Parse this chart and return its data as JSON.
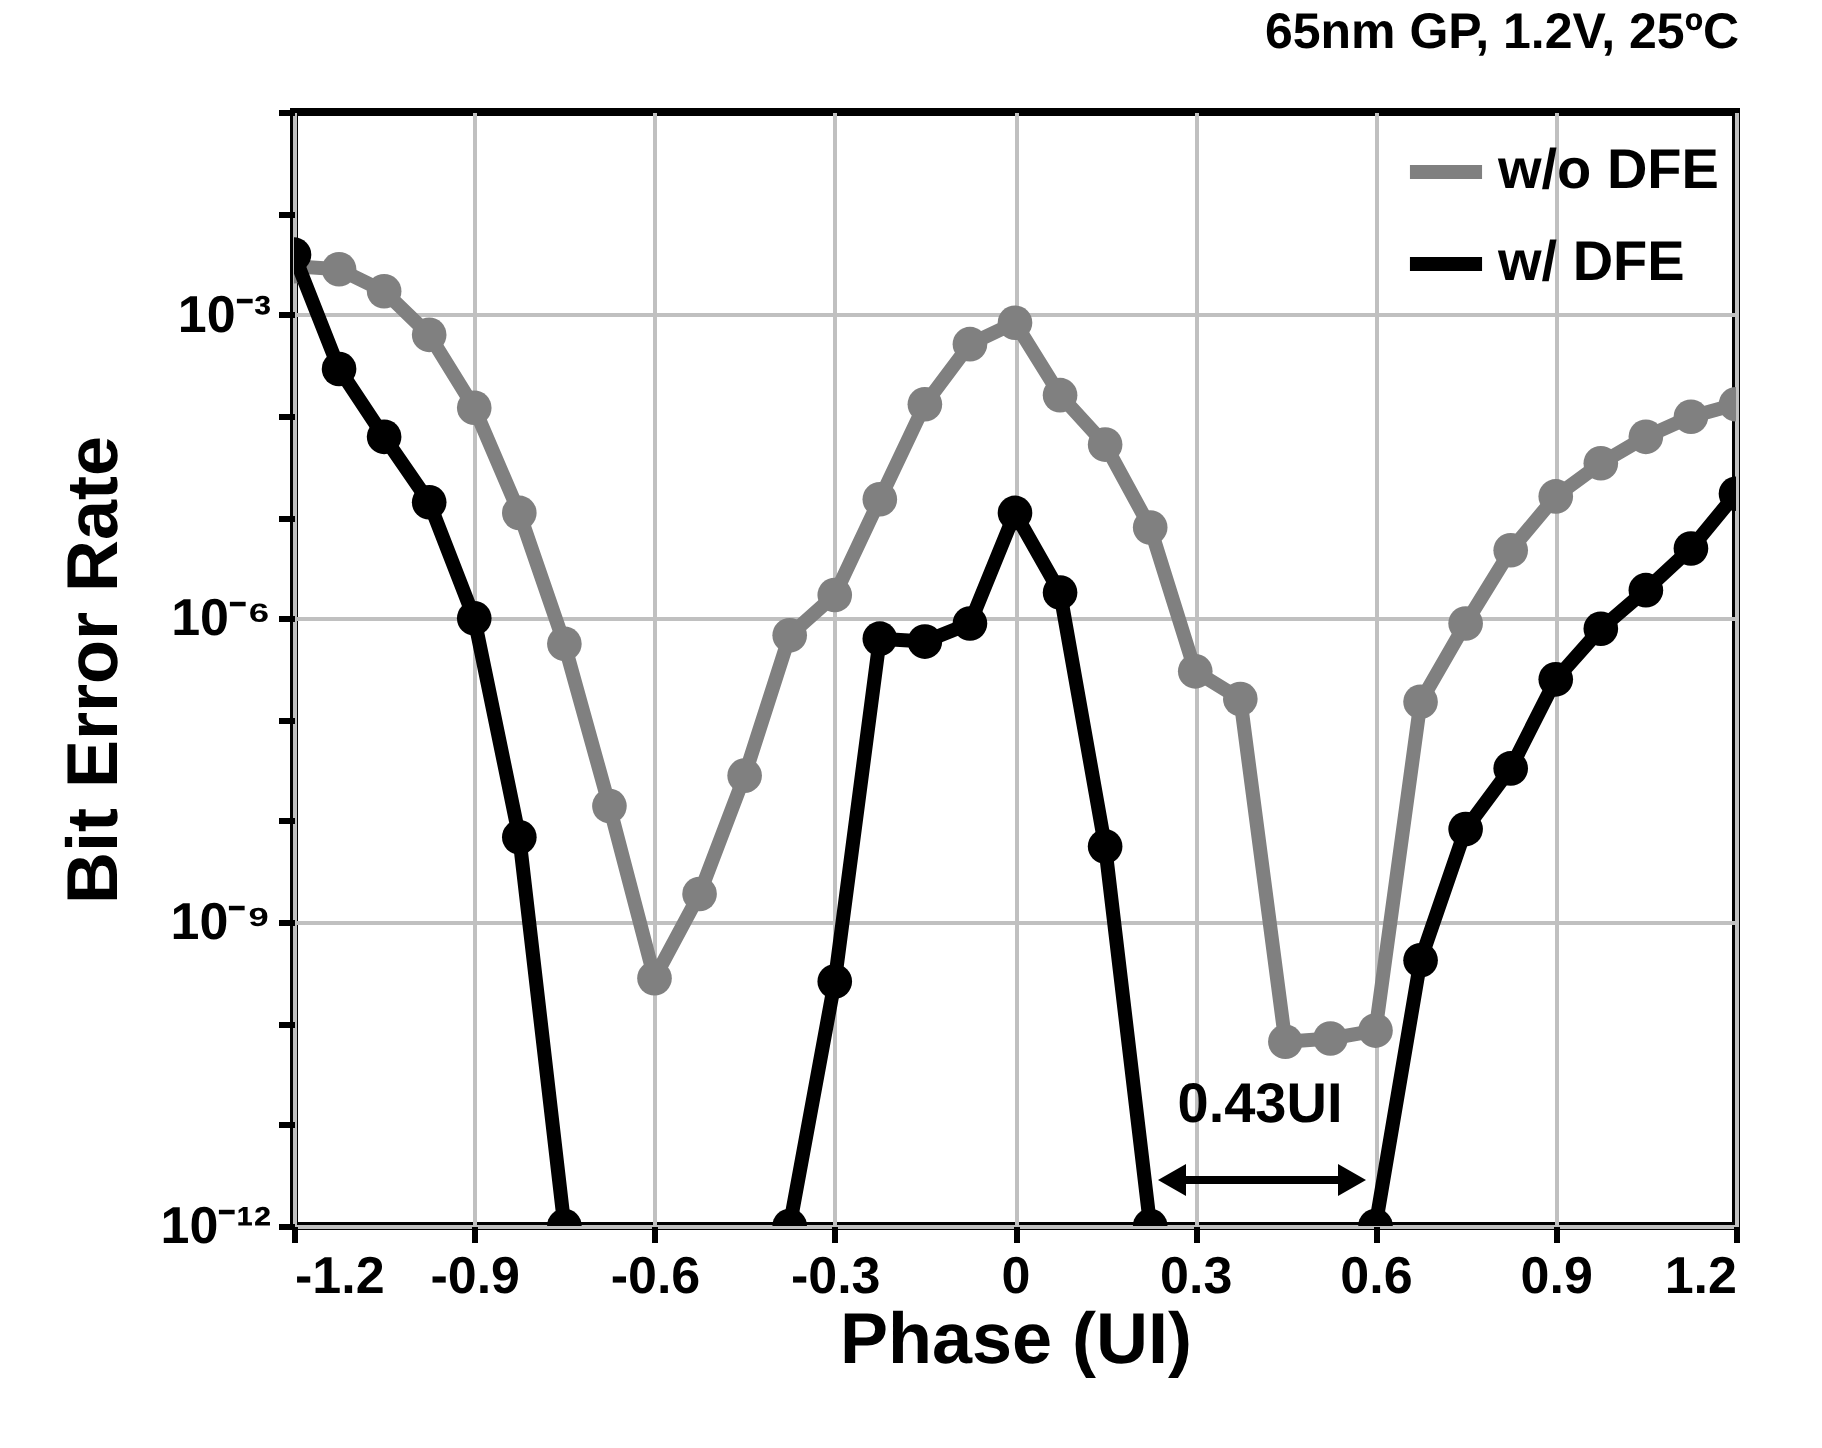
{
  "chart_data": {
    "type": "line",
    "title": "65nm GP, 1.2V, 25ºC",
    "xlabel": "Phase (UI)",
    "ylabel": "Bit Error Rate",
    "x": [
      -1.2,
      -1.125,
      -1.05,
      -0.975,
      -0.9,
      -0.825,
      -0.75,
      -0.675,
      -0.6,
      -0.525,
      -0.45,
      -0.375,
      -0.3,
      -0.225,
      -0.15,
      -0.075,
      0,
      0.075,
      0.15,
      0.225,
      0.3,
      0.375,
      0.45,
      0.525,
      0.6,
      0.675,
      0.75,
      0.825,
      0.9,
      0.975,
      1.05,
      1.125,
      1.2
    ],
    "series": [
      {
        "name": "w/o DFE",
        "color": "#808080",
        "values": [
          0.003,
          0.0028,
          0.0017,
          0.00063,
          0.00012,
          1.1e-05,
          5.6e-07,
          1.4e-08,
          2.8e-10,
          1.9e-09,
          2.8e-08,
          6.8e-07,
          1.7e-06,
          1.5e-05,
          0.00013,
          0.00051,
          0.00083,
          0.00016,
          5.2e-05,
          7.9e-06,
          3e-07,
          1.6e-07,
          6.6e-11,
          7.1e-11,
          8.5e-11,
          1.5e-07,
          8.9e-07,
          4.7e-06,
          1.6e-05,
          3.4e-05,
          6.2e-05,
          9.8e-05,
          0.00013
        ]
      },
      {
        "name": "w/ DFE",
        "color": "#000000",
        "values": [
          0.0039,
          0.00029,
          6.2e-05,
          1.4e-05,
          1e-06,
          6.9e-09,
          1e-12,
          null,
          null,
          null,
          null,
          1e-12,
          2.6e-10,
          6.3e-07,
          5.9e-07,
          8.9e-07,
          1.1e-05,
          1.8e-06,
          5.6e-09,
          1e-12,
          null,
          null,
          null,
          null,
          1e-12,
          4.2e-10,
          8.3e-09,
          3.3e-08,
          2.5e-07,
          7.9e-07,
          1.9e-06,
          4.9e-06,
          1.7e-05
        ]
      }
    ],
    "xlim": [
      -1.2,
      1.2
    ],
    "xticks": [
      -1.2,
      -0.9,
      -0.6,
      -0.3,
      0,
      0.3,
      0.6,
      0.9,
      1.2
    ],
    "ylim": [
      1e-12,
      0.1
    ],
    "log": true,
    "yticks": [
      {
        "value": 1e-12,
        "label": "10⁻¹²"
      },
      {
        "value": 1e-11,
        "label": null
      },
      {
        "value": 1e-10,
        "label": null
      },
      {
        "value": 1e-09,
        "label": "10⁻⁹"
      },
      {
        "value": 1e-08,
        "label": null
      },
      {
        "value": 1e-07,
        "label": null
      },
      {
        "value": 1e-06,
        "label": "10⁻⁶"
      },
      {
        "value": 1e-05,
        "label": null
      },
      {
        "value": 0.0001,
        "label": null
      },
      {
        "value": 0.001,
        "label": "10⁻³"
      },
      {
        "value": 0.01,
        "label": null
      },
      {
        "value": 0.1,
        "label": null
      }
    ],
    "annotations": [
      "0.43UI"
    ],
    "grid": true,
    "legend": "top right",
    "marker": "circle",
    "line_style": "solid"
  }
}
